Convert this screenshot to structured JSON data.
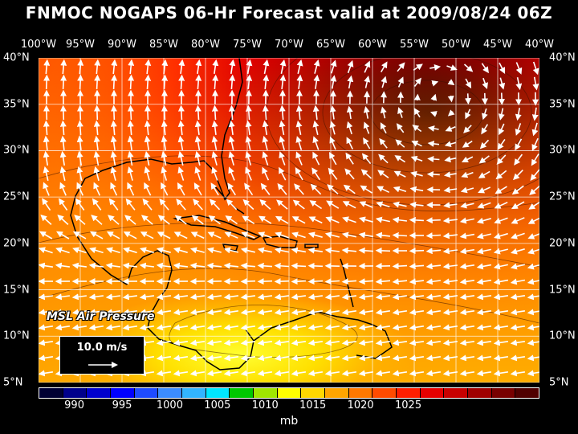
{
  "title": "FNMOC NOGAPS 06-Hr Forecast valid at 2009/08/24 06Z",
  "lon_labels": [
    "100°W",
    "95°W",
    "90°W",
    "85°W",
    "80°W",
    "75°W",
    "70°W",
    "65°W",
    "60°W",
    "55°W",
    "50°W",
    "45°W",
    "40°W"
  ],
  "lat_labels": [
    "40°N",
    "35°N",
    "30°N",
    "25°N",
    "20°N",
    "15°N",
    "10°N",
    "5°N"
  ],
  "map_label": "MSL Air Pressure",
  "reference_vector": {
    "label": "10.0 m/s"
  },
  "colorbar": {
    "colors": [
      "#000033",
      "#00008b",
      "#0000cd",
      "#0000ff",
      "#1e4bff",
      "#3c8cff",
      "#32b4ff",
      "#00e6ff",
      "#00c800",
      "#a0e600",
      "#ffff00",
      "#ffd700",
      "#ffa500",
      "#ff7800",
      "#ff4b00",
      "#ff1e00",
      "#e60000",
      "#c80000",
      "#a00000",
      "#780000",
      "#500000"
    ],
    "labels": [
      "990",
      "995",
      "1000",
      "1005",
      "1010",
      "1015",
      "1020",
      "1025"
    ],
    "unit": "mb"
  },
  "map": {
    "lon_range": [
      -100,
      -40
    ],
    "lat_range": [
      5,
      40
    ],
    "high_center": {
      "lon": -52,
      "lat": 35.5
    }
  }
}
